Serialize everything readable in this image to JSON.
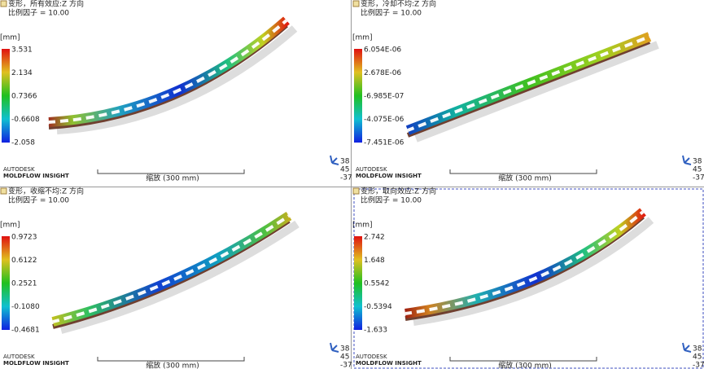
{
  "views": [
    {
      "title": "变形，所有效应:Z 方向",
      "scale_factor": "比例因子 = 10.00",
      "unit": "[mm]",
      "legend": [
        "3.531",
        "2.134",
        "0.7366",
        "-0.6608",
        "-2.058"
      ],
      "brand": "AUTODESK",
      "product": "MOLDFLOW INSIGHT",
      "scale_bar": "缩放 (300 mm)",
      "triad": [
        "38",
        "45",
        "-37"
      ]
    },
    {
      "title": "变形，冷却不均:Z 方向",
      "scale_factor": "比例因子 = 10.00",
      "unit": "[mm]",
      "legend": [
        "6.054E-06",
        "2.678E-06",
        "-6.985E-07",
        "-4.075E-06",
        "-7.451E-06"
      ],
      "brand": "AUTODESK",
      "product": "MOLDFLOW INSIGHT",
      "scale_bar": "缩放 (300 mm)",
      "triad": [
        "38",
        "45",
        "-37"
      ]
    },
    {
      "title": "变形，收缩不均:Z 方向",
      "scale_factor": "比例因子 = 10.00",
      "unit": "[mm]",
      "legend": [
        "0.9723",
        "0.6122",
        "0.2521",
        "-0.1080",
        "-0.4681"
      ],
      "brand": "AUTODESK",
      "product": "MOLDFLOW INSIGHT",
      "scale_bar": "缩放 (300 mm)",
      "triad": [
        "38",
        "45",
        "-37"
      ]
    },
    {
      "title": "变形，取向效应:Z 方向",
      "scale_factor": "比例因子 = 10.00",
      "unit": "[mm]",
      "legend": [
        "2.742",
        "1.648",
        "0.5542",
        "-0.5394",
        "-1.633"
      ],
      "brand": "AUTODESK",
      "product": "MOLDFLOW INSIGHT",
      "scale_bar": "缩放 (300 mm)",
      "triad": [
        "38",
        "45",
        "-37"
      ]
    }
  ]
}
